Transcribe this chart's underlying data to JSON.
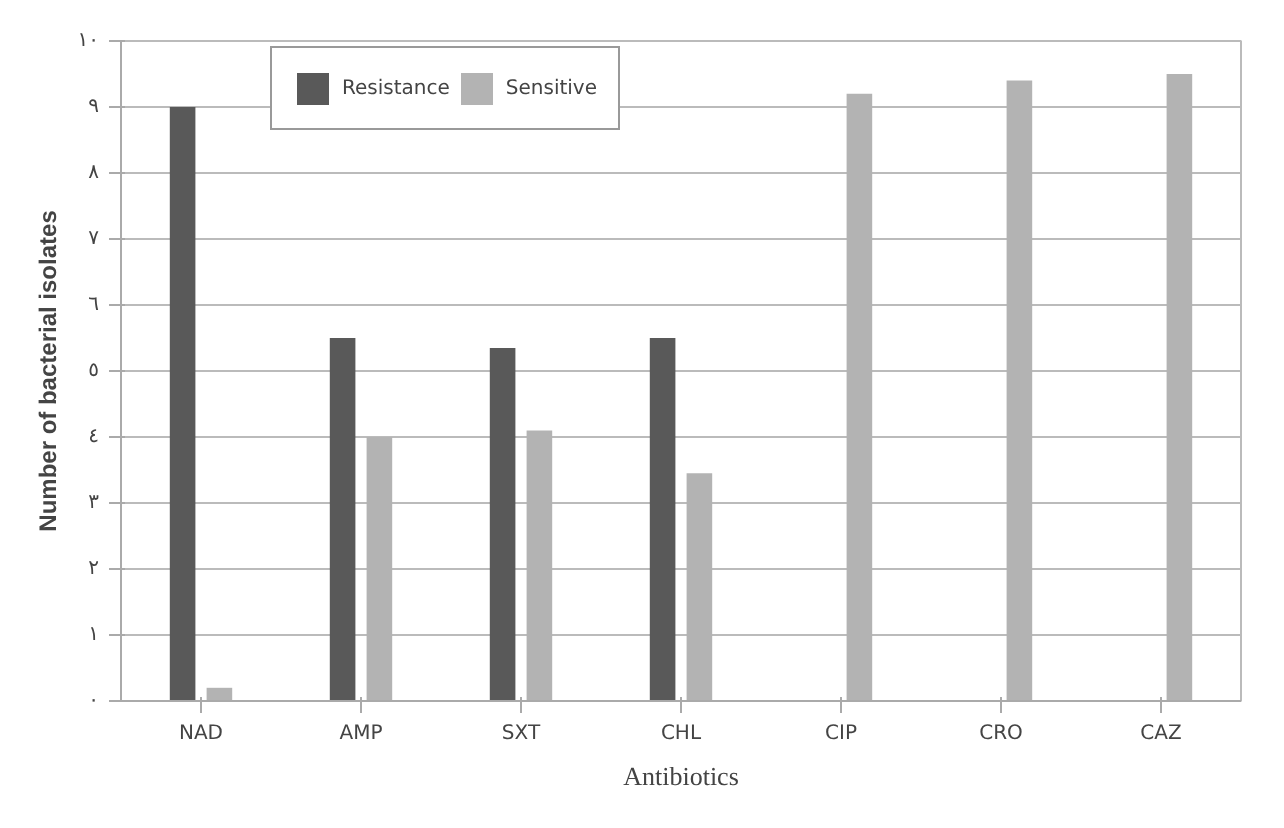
{
  "chart_data": {
    "type": "bar",
    "xlabel": "Antibiotics",
    "ylabel": "Number of bacterial isolates",
    "categories": [
      "NAD",
      "AMP",
      "SXT",
      "CHL",
      "CIP",
      "CRO",
      "CAZ"
    ],
    "series": [
      {
        "name": "Resistance",
        "color": "#595959",
        "values": [
          9,
          5.5,
          5.35,
          5.5,
          0,
          0,
          0
        ]
      },
      {
        "name": "Sensitive",
        "color": "#b3b3b3",
        "values": [
          0.2,
          4,
          4.1,
          3.45,
          9.2,
          9.4,
          9.5
        ]
      }
    ],
    "ylim": [
      0,
      10
    ],
    "yticks": [
      {
        "value": 0,
        "label": "٠"
      },
      {
        "value": 1,
        "label": "١"
      },
      {
        "value": 2,
        "label": "٢"
      },
      {
        "value": 3,
        "label": "٣"
      },
      {
        "value": 4,
        "label": "٤"
      },
      {
        "value": 5,
        "label": "٥"
      },
      {
        "value": 6,
        "label": "٦"
      },
      {
        "value": 7,
        "label": "٧"
      },
      {
        "value": 8,
        "label": "٨"
      },
      {
        "value": 9,
        "label": "٩"
      },
      {
        "value": 10,
        "label": "١٠"
      }
    ],
    "grid": "y",
    "legend": "top left"
  }
}
